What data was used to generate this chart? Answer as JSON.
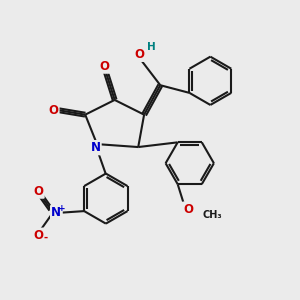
{
  "bg_color": "#ebebeb",
  "bond_color": "#1a1a1a",
  "bond_width": 1.5,
  "atom_colors": {
    "O": "#cc0000",
    "N": "#0000cc",
    "H": "#008080",
    "C": "#1a1a1a"
  },
  "font_size_atom": 8.5,
  "fig_size": [
    3.0,
    3.0
  ],
  "dpi": 100
}
